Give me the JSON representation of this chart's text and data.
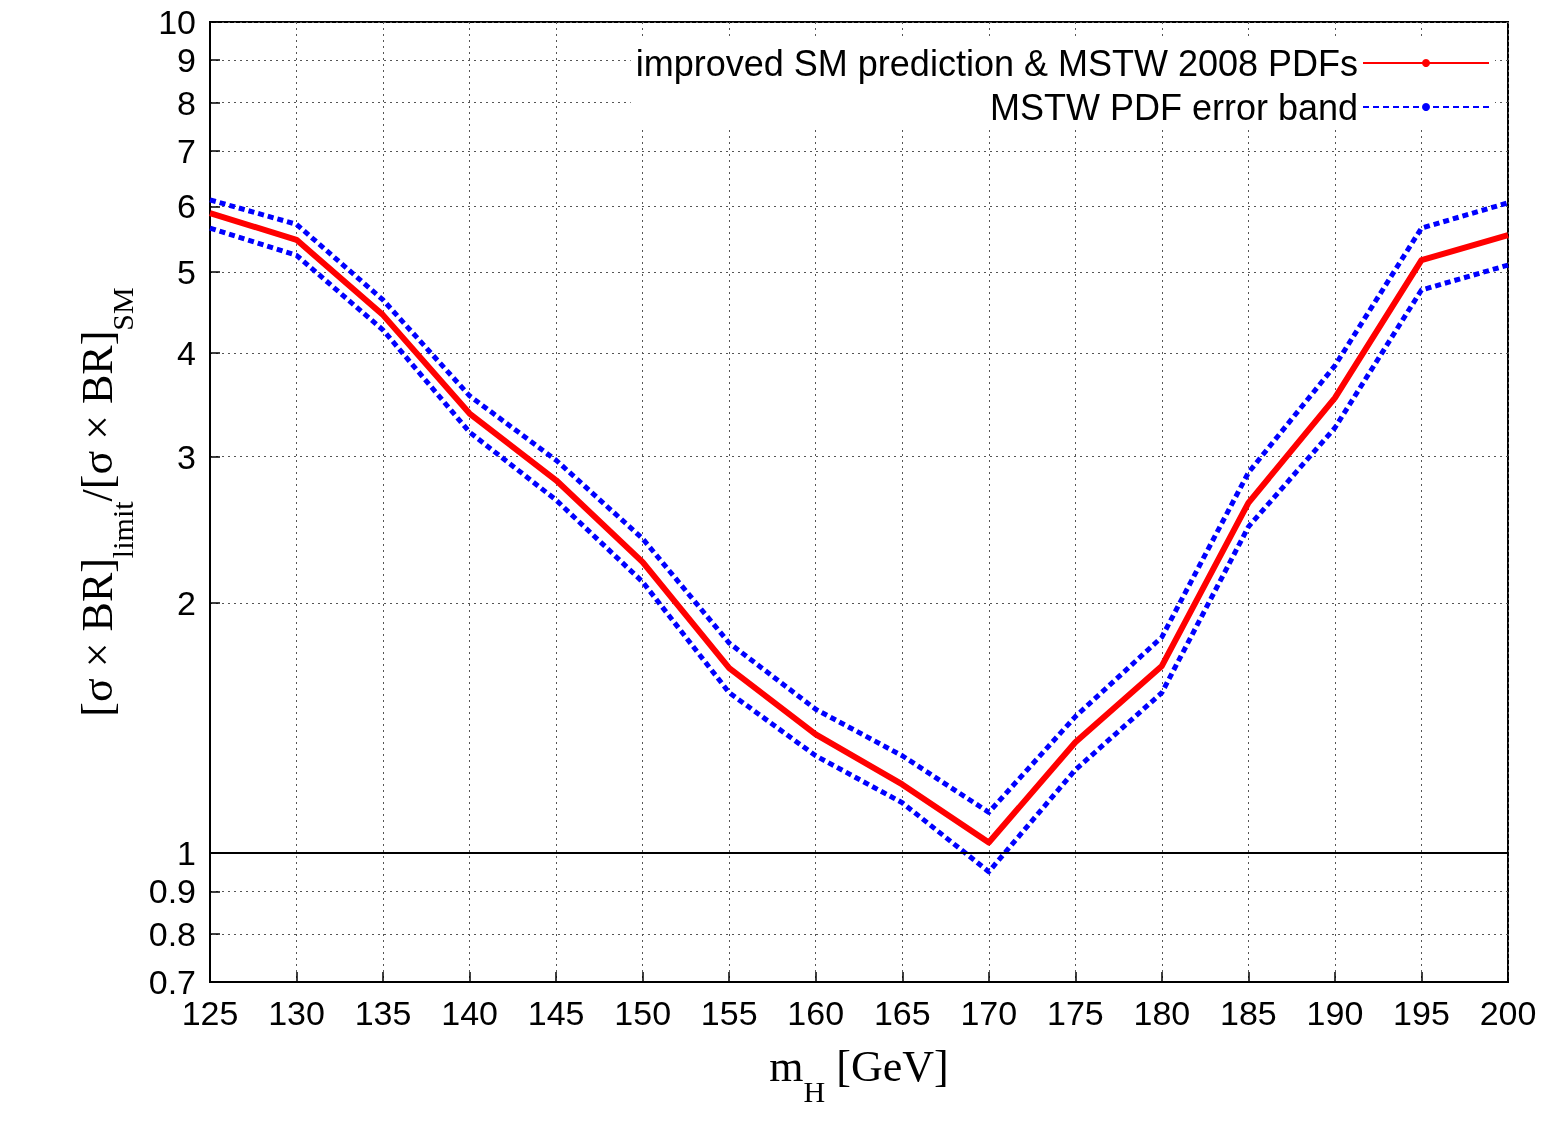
{
  "chart_data": {
    "type": "line",
    "xlabel": "m$_{H}$ [GeV]",
    "ylabel": "[σ × BR]$_{limit}$/[σ × BR]$_{SM}$",
    "x": [
      125,
      130,
      135,
      140,
      145,
      150,
      155,
      160,
      165,
      170,
      175,
      180,
      185,
      190,
      195,
      200
    ],
    "series": [
      {
        "name": "improved SM prediction & MSTW 2008 PDFs",
        "color": "#ff0000",
        "line_style": "solid",
        "values": [
          5.89,
          5.47,
          4.44,
          3.38,
          2.81,
          2.24,
          1.67,
          1.39,
          1.21,
          1.03,
          1.36,
          1.68,
          2.64,
          3.53,
          5.17,
          5.54
        ]
      },
      {
        "name": "MSTW PDF error band",
        "color": "#0000ff",
        "line_style": "dashed",
        "values": [
          6.11,
          5.71,
          4.63,
          3.55,
          2.97,
          2.39,
          1.79,
          1.49,
          1.31,
          1.12,
          1.46,
          1.82,
          2.87,
          3.86,
          5.65,
          6.06
        ]
      },
      {
        "color": "#0000ff",
        "line_style": "dashed",
        "values": [
          5.65,
          5.24,
          4.26,
          3.21,
          2.66,
          2.12,
          1.56,
          1.31,
          1.15,
          0.95,
          1.26,
          1.56,
          2.47,
          3.25,
          4.76,
          5.1
        ]
      }
    ],
    "xlim": [
      125,
      200
    ],
    "xticks": [
      125,
      130,
      135,
      140,
      145,
      150,
      155,
      160,
      165,
      170,
      175,
      180,
      185,
      190,
      195,
      200
    ],
    "ylim": [
      0.7,
      10
    ],
    "yticks": [
      0.7,
      0.8,
      0.9,
      1,
      2,
      3,
      4,
      5,
      6,
      7,
      8,
      9,
      10
    ],
    "log": "y",
    "grid": true,
    "legend": "top right",
    "marker": "none",
    "ref_lines": [
      {
        "axis": "y",
        "value": 1,
        "color": "#000000",
        "line_style": "solid"
      }
    ]
  }
}
